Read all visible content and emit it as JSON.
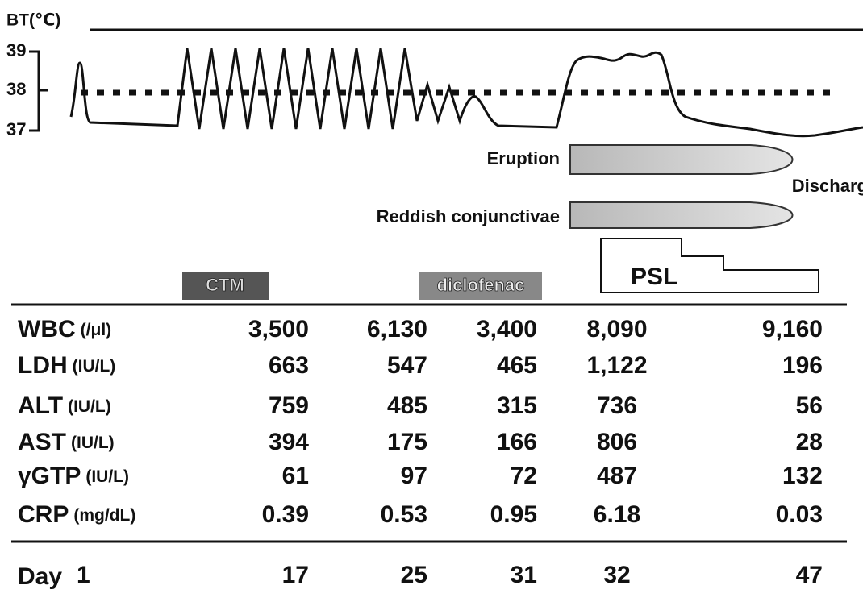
{
  "chart": {
    "axis_label": "BT(℃)",
    "ticks": [
      "39",
      "38",
      "37"
    ]
  },
  "events": {
    "eruption": "Eruption",
    "discharge": "Discharge",
    "conjunctivae": "Reddish conjunctivae"
  },
  "drugs": {
    "ctm": "CTM",
    "diclofenac": "diclofenac",
    "psl": "PSL"
  },
  "table": {
    "rows": [
      {
        "name": "WBC",
        "unit": "(/μl)",
        "values": [
          "3,500",
          "6,130",
          "3,400",
          "8,090",
          "9,160"
        ]
      },
      {
        "name": "LDH",
        "unit": "(IU/L)",
        "values": [
          "663",
          "547",
          "465",
          "1,122",
          "196"
        ]
      },
      {
        "name": "ALT",
        "unit": "(IU/L)",
        "values": [
          "759",
          "485",
          "315",
          "736",
          "56"
        ]
      },
      {
        "name": "AST",
        "unit": "(IU/L)",
        "values": [
          "394",
          "175",
          "166",
          "806",
          "28"
        ]
      },
      {
        "name": "γGTP",
        "unit": "(IU/L)",
        "values": [
          "61",
          "97",
          "72",
          "487",
          "132"
        ]
      },
      {
        "name": "CRP",
        "unit": "(mg/dL)",
        "values": [
          "0.39",
          "0.53",
          "0.95",
          "6.18",
          "0.03"
        ]
      }
    ],
    "day_label": "Day",
    "days": [
      "1",
      "17",
      "25",
      "31",
      "32",
      "47"
    ]
  }
}
